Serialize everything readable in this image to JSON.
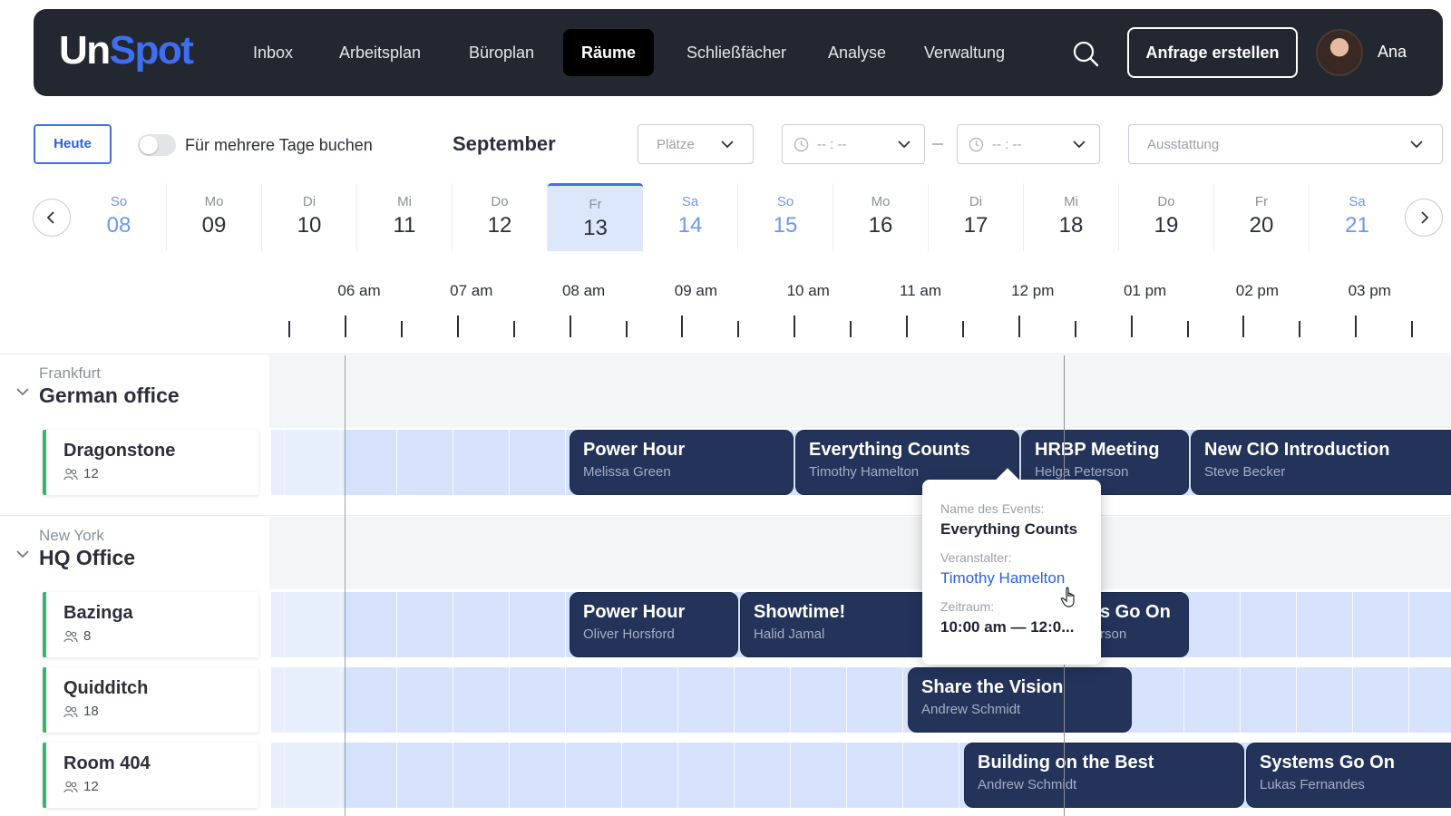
{
  "app": {
    "logo_part1": "Un",
    "logo_part2": "Spot",
    "nav": [
      "Inbox",
      "Arbeitsplan",
      "Büroplan",
      "Räume",
      "Schließfächer",
      "Analyse",
      "Verwaltung"
    ],
    "active_nav": "Räume",
    "request_button": "Anfrage erstellen",
    "user_name": "Ana"
  },
  "filters": {
    "today_button": "Heute",
    "multi_day_label": "Für mehrere Tage buchen",
    "multi_day_enabled": false,
    "month": "September",
    "seats_placeholder": "Plätze",
    "time_from_placeholder": "-- : --",
    "time_to_placeholder": "-- : --",
    "equipment_placeholder": "Ausstattung"
  },
  "days": [
    {
      "name": "So",
      "num": "08",
      "weekend": true
    },
    {
      "name": "Mo",
      "num": "09",
      "weekend": false
    },
    {
      "name": "Di",
      "num": "10",
      "weekend": false
    },
    {
      "name": "Mi",
      "num": "11",
      "weekend": false
    },
    {
      "name": "Do",
      "num": "12",
      "weekend": false
    },
    {
      "name": "Fr",
      "num": "13",
      "weekend": false,
      "selected": true
    },
    {
      "name": "Sa",
      "num": "14",
      "weekend": true
    },
    {
      "name": "So",
      "num": "15",
      "weekend": true
    },
    {
      "name": "Mo",
      "num": "16",
      "weekend": false
    },
    {
      "name": "Di",
      "num": "17",
      "weekend": false
    },
    {
      "name": "Mi",
      "num": "18",
      "weekend": false
    },
    {
      "name": "Do",
      "num": "19",
      "weekend": false
    },
    {
      "name": "Fr",
      "num": "20",
      "weekend": false
    },
    {
      "name": "Sa",
      "num": "21",
      "weekend": true
    }
  ],
  "time_labels": [
    "06 am",
    "07 am",
    "08 am",
    "09 am",
    "10 am",
    "11 am",
    "12 pm",
    "01 pm",
    "02 pm",
    "03 pm"
  ],
  "locations": [
    {
      "city": "Frankfurt",
      "name": "German office"
    },
    {
      "city": "New York",
      "name": "HQ Office"
    }
  ],
  "rooms": [
    {
      "name": "Dragonstone",
      "capacity": "12"
    },
    {
      "name": "Bazinga",
      "capacity": "8"
    },
    {
      "name": "Quidditch",
      "capacity": "18"
    },
    {
      "name": "Room 404",
      "capacity": "12"
    }
  ],
  "events": [
    {
      "title": "Power Hour",
      "organizer": "Melissa Green"
    },
    {
      "title": "Everything Counts",
      "organizer": "Timothy Hamelton"
    },
    {
      "title": "HRBP Meeting",
      "organizer": "Helga Peterson"
    },
    {
      "title": "New CIO Introduction",
      "organizer": "Steve Becker"
    },
    {
      "title": "Power Hour",
      "organizer": "Oliver Horsford"
    },
    {
      "title": "Showtime!",
      "organizer": "Halid Jamal"
    },
    {
      "title": "s Go On",
      "organizer": "rson"
    },
    {
      "title": "Share the Vision",
      "organizer": "Andrew Schmidt"
    },
    {
      "title": "Building on the Best",
      "organizer": "Andrew Schmidt"
    },
    {
      "title": "Systems Go On",
      "organizer": "Lukas Fernandes"
    }
  ],
  "tooltip": {
    "event_label": "Name des Events:",
    "event_name": "Everything Counts",
    "organizer_label": "Veranstalter:",
    "organizer_name": "Timothy Hamelton",
    "time_label": "Zeitraum:",
    "time_value": "10:00 am — 12:0..."
  },
  "colors": {
    "accent": "#3f6ff0",
    "nav_bg": "#23272f",
    "event_bg": "#23335a",
    "lane_bg": "#d6e2fb",
    "room_marker": "#3ab36b"
  }
}
